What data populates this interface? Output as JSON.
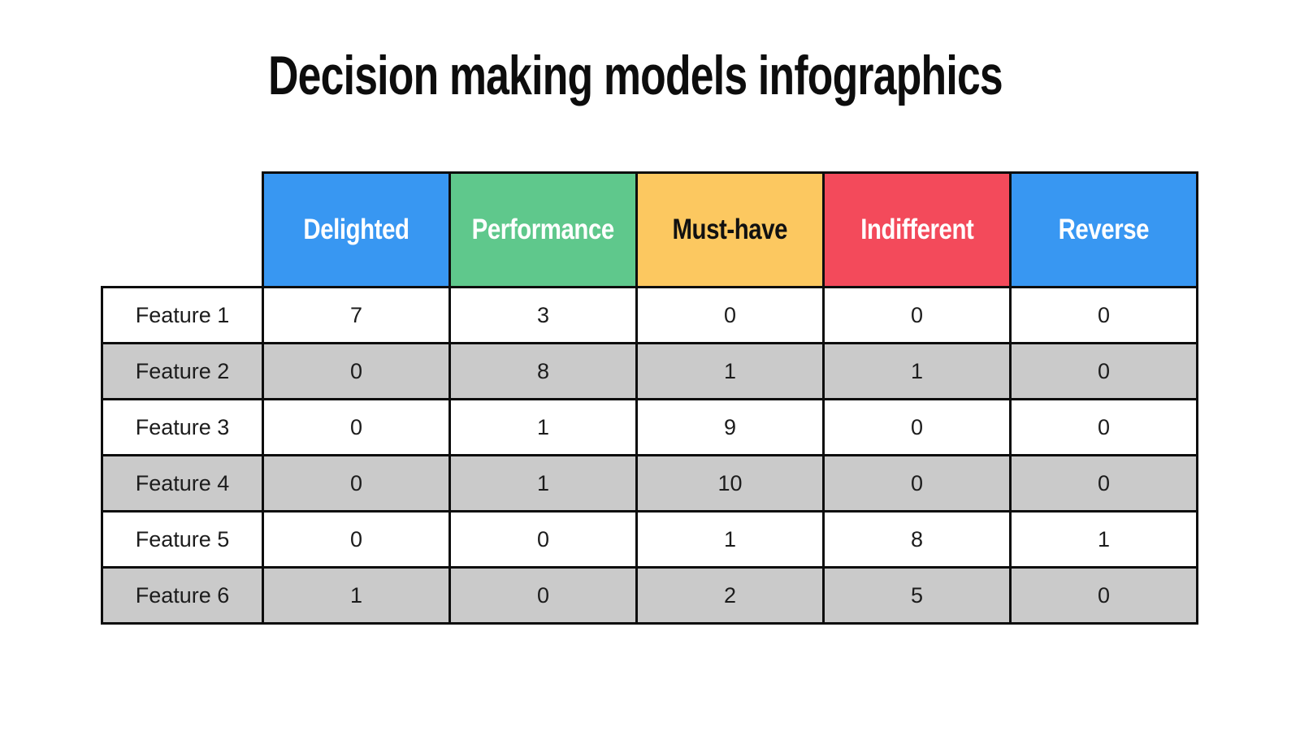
{
  "title": "Decision making models infographics",
  "colors": {
    "blue": "#3897f2",
    "green": "#5fc88c",
    "yellow": "#fcc860",
    "red": "#f34a5b",
    "stripe_odd": "#ffffff",
    "stripe_even": "#cacaca",
    "border": "#0d0d0d",
    "header_text_light": "#ffffff",
    "header_text_dark": "#111111"
  },
  "table": {
    "columns": [
      {
        "label": "Delighted",
        "bg": "#3897f2",
        "text": "#ffffff"
      },
      {
        "label": "Performance",
        "bg": "#5fc88c",
        "text": "#ffffff"
      },
      {
        "label": "Must-have",
        "bg": "#fcc860",
        "text": "#111111"
      },
      {
        "label": "Indifferent",
        "bg": "#f34a5b",
        "text": "#ffffff"
      },
      {
        "label": "Reverse",
        "bg": "#3897f2",
        "text": "#ffffff"
      }
    ],
    "rows": [
      {
        "label": "Feature 1",
        "values": [
          "7",
          "3",
          "0",
          "0",
          "0"
        ]
      },
      {
        "label": "Feature 2",
        "values": [
          "0",
          "8",
          "1",
          "1",
          "0"
        ]
      },
      {
        "label": "Feature 3",
        "values": [
          "0",
          "1",
          "9",
          "0",
          "0"
        ]
      },
      {
        "label": "Feature 4",
        "values": [
          "0",
          "1",
          "10",
          "0",
          "0"
        ]
      },
      {
        "label": "Feature 5",
        "values": [
          "0",
          "0",
          "1",
          "8",
          "1"
        ]
      },
      {
        "label": "Feature 6",
        "values": [
          "1",
          "0",
          "2",
          "5",
          "0"
        ]
      }
    ]
  },
  "chart_data": {
    "type": "table",
    "title": "Decision making models infographics",
    "columns": [
      "",
      "Delighted",
      "Performance",
      "Must-have",
      "Indifferent",
      "Reverse"
    ],
    "rows": [
      [
        "Feature 1",
        7,
        3,
        0,
        0,
        0
      ],
      [
        "Feature 2",
        0,
        8,
        1,
        1,
        0
      ],
      [
        "Feature 3",
        0,
        1,
        9,
        0,
        0
      ],
      [
        "Feature 4",
        0,
        1,
        10,
        0,
        0
      ],
      [
        "Feature 5",
        0,
        0,
        1,
        8,
        1
      ],
      [
        "Feature 6",
        1,
        0,
        2,
        5,
        0
      ]
    ],
    "layout_hints": {
      "row_striping": [
        "white",
        "gray"
      ],
      "header_colors": [
        "#3897f2",
        "#5fc88c",
        "#fcc860",
        "#f34a5b",
        "#3897f2"
      ],
      "grid": true
    }
  }
}
